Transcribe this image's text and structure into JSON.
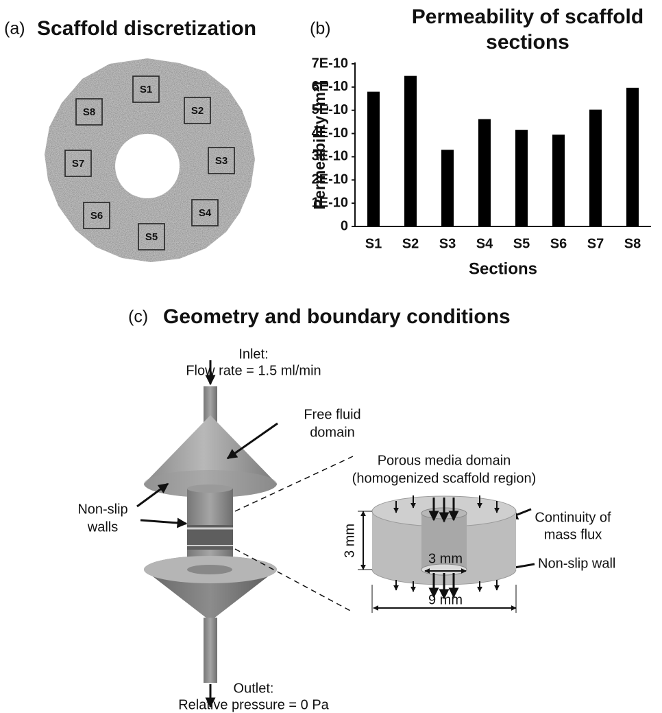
{
  "panel_a": {
    "label": "(a)",
    "title": "Scaffold discretization",
    "sections": [
      "S1",
      "S2",
      "S3",
      "S4",
      "S5",
      "S6",
      "S7",
      "S8"
    ]
  },
  "chart_data": {
    "type": "bar",
    "label": "(b)",
    "title": "Permeability of scaffold sections",
    "y_label": "Permeability [m²]",
    "x_label": "Sections",
    "categories": [
      "S1",
      "S2",
      "S3",
      "S4",
      "S5",
      "S6",
      "S7",
      "S8"
    ],
    "values": [
      5.8e-10,
      6.48e-10,
      3.3e-10,
      4.62e-10,
      4.16e-10,
      3.95e-10,
      5.03e-10,
      5.97e-10
    ],
    "color": "#000000",
    "ylim": [
      0,
      7e-10
    ],
    "yticks": [
      0,
      {
        "value": 1e-10,
        "label": "1E-10"
      },
      {
        "value": 2e-10,
        "label": "2E-10"
      },
      {
        "value": 3e-10,
        "label": "3E-10"
      },
      {
        "value": 4e-10,
        "label": "4E-10"
      },
      {
        "value": 5e-10,
        "label": "5E-10"
      },
      {
        "value": 6e-10,
        "label": "6E-10"
      },
      {
        "value": 7e-10,
        "label": "7E-10"
      }
    ],
    "grid": false
  },
  "panel_c": {
    "label": "(c)",
    "title": "Geometry and boundary conditions",
    "inlet": [
      "Inlet:",
      "Flow rate = 1.5 ml/min"
    ],
    "free_fluid": [
      "Free fluid",
      "domain"
    ],
    "non_slip_walls": [
      "Non-slip",
      "walls"
    ],
    "porous": [
      "Porous media domain",
      "(homogenized scaffold region)"
    ],
    "continuity": [
      "Continuity of",
      "mass flux"
    ],
    "non_slip_wall": "Non-slip wall",
    "inner_diameter": "3 mm",
    "height": "3 mm",
    "outer_diameter": "9 mm",
    "outlet": [
      "Outlet:",
      "Relative pressure = 0 Pa"
    ]
  }
}
